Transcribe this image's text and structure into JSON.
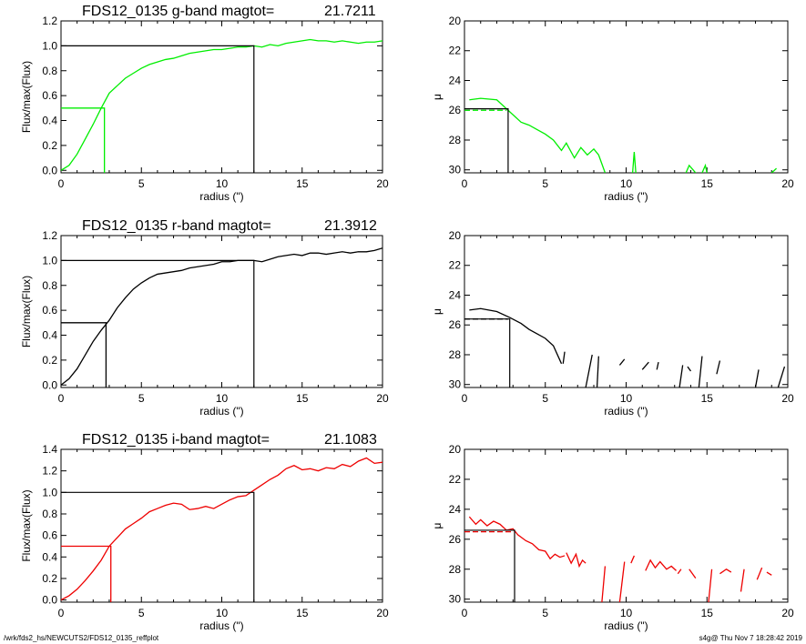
{
  "footer": {
    "left": "/wrk/fds2_hs/NEWCUTS2/FDS12_0135_reffplot",
    "right": "s4g@  Thu Nov  7 18:28:42 2019"
  },
  "chart_data": [
    {
      "type": "line",
      "panel": "g-band-growth-curve",
      "title_prefix": "FDS12_0135 g-band  magtot=",
      "title_value": "21.7211",
      "xlabel": "radius (\")",
      "ylabel": "Flux/max(Flux)",
      "xlim": [
        0,
        20
      ],
      "ylim": [
        -0.02,
        1.2
      ],
      "xticks": [
        "0",
        "5",
        "10",
        "15",
        "20"
      ],
      "yticks": [
        "0.0",
        "0.2",
        "0.4",
        "0.6",
        "0.8",
        "1.0",
        "1.2"
      ],
      "color": "#00ee00",
      "x": [
        0,
        0.5,
        1,
        1.5,
        2,
        2.5,
        3,
        3.5,
        4,
        4.5,
        5,
        5.5,
        6,
        6.5,
        7,
        7.5,
        8,
        8.5,
        9,
        9.5,
        10,
        10.5,
        11,
        11.5,
        12,
        12.5,
        13,
        13.5,
        14,
        14.5,
        15,
        15.5,
        16,
        16.5,
        17,
        17.5,
        18,
        18.5,
        19,
        19.5,
        20
      ],
      "y": [
        0.0,
        0.04,
        0.13,
        0.25,
        0.37,
        0.5,
        0.62,
        0.68,
        0.74,
        0.78,
        0.82,
        0.85,
        0.87,
        0.89,
        0.9,
        0.92,
        0.94,
        0.95,
        0.96,
        0.97,
        0.97,
        0.98,
        0.99,
        0.99,
        1.0,
        0.99,
        1.01,
        1.0,
        1.02,
        1.03,
        1.04,
        1.05,
        1.04,
        1.04,
        1.03,
        1.04,
        1.03,
        1.02,
        1.03,
        1.03,
        1.04
      ],
      "half_light": {
        "x": 2.7,
        "y": 0.5
      },
      "total": {
        "x": 12.0,
        "y": 1.0
      }
    },
    {
      "type": "line",
      "panel": "g-band-surface-brightness",
      "xlabel": "radius (\")",
      "ylabel": "μ",
      "xlim": [
        0,
        20
      ],
      "ylim": [
        30.2,
        20
      ],
      "xticks": [
        "0",
        "5",
        "10",
        "15",
        "20"
      ],
      "yticks": [
        "20",
        "22",
        "24",
        "26",
        "28",
        "30"
      ],
      "color": "#00ee00",
      "segments": [
        [
          [
            0.3,
            25.3
          ],
          [
            1,
            25.2
          ],
          [
            2,
            25.3
          ],
          [
            2.6,
            25.9
          ],
          [
            3.5,
            26.8
          ],
          [
            4,
            27.0
          ],
          [
            4.5,
            27.3
          ],
          [
            5,
            27.6
          ],
          [
            5.5,
            28.0
          ],
          [
            6,
            28.7
          ],
          [
            6.3,
            28.2
          ],
          [
            6.8,
            29.2
          ],
          [
            7.2,
            28.5
          ],
          [
            7.6,
            29.0
          ],
          [
            8,
            28.6
          ],
          [
            8.3,
            29.0
          ],
          [
            8.7,
            30.2
          ]
        ],
        [
          [
            10.4,
            30.2
          ],
          [
            10.5,
            28.8
          ],
          [
            10.6,
            30.2
          ]
        ],
        [
          [
            13.7,
            30.2
          ],
          [
            13.9,
            29.7
          ],
          [
            14.3,
            30.2
          ]
        ],
        [
          [
            14.7,
            30.2
          ],
          [
            14.9,
            29.7
          ],
          [
            15.0,
            30.2
          ]
        ],
        [
          [
            19.0,
            30.2
          ],
          [
            19.3,
            29.9
          ]
        ]
      ],
      "dashed": [
        [
          0,
          26.0
        ],
        [
          2.6,
          26.0
        ]
      ],
      "reff_marker": {
        "x": 2.7,
        "mu": 25.9
      }
    },
    {
      "type": "line",
      "panel": "r-band-growth-curve",
      "title_prefix": "FDS12_0135 r-band  magtot=",
      "title_value": "21.3912",
      "xlabel": "radius (\")",
      "ylabel": "Flux/max(Flux)",
      "xlim": [
        0,
        20
      ],
      "ylim": [
        -0.02,
        1.2
      ],
      "xticks": [
        "0",
        "5",
        "10",
        "15",
        "20"
      ],
      "yticks": [
        "0.0",
        "0.2",
        "0.4",
        "0.6",
        "0.8",
        "1.0",
        "1.2"
      ],
      "color": "#000000",
      "x": [
        0,
        0.5,
        1,
        1.5,
        2,
        2.5,
        3,
        3.5,
        4,
        4.5,
        5,
        5.5,
        6,
        6.5,
        7,
        7.5,
        8,
        8.5,
        9,
        9.5,
        10,
        10.5,
        11,
        11.5,
        12,
        12.5,
        13,
        13.5,
        14,
        14.5,
        15,
        15.5,
        16,
        16.5,
        17,
        17.5,
        18,
        18.5,
        19,
        19.5,
        20
      ],
      "y": [
        0.0,
        0.05,
        0.13,
        0.24,
        0.35,
        0.44,
        0.52,
        0.62,
        0.7,
        0.77,
        0.82,
        0.86,
        0.89,
        0.9,
        0.91,
        0.92,
        0.94,
        0.95,
        0.96,
        0.97,
        0.99,
        0.99,
        1.0,
        1.0,
        1.0,
        0.99,
        1.01,
        1.03,
        1.04,
        1.05,
        1.04,
        1.06,
        1.06,
        1.05,
        1.06,
        1.07,
        1.06,
        1.07,
        1.07,
        1.08,
        1.1
      ],
      "half_light": {
        "x": 2.8,
        "y": 0.5
      },
      "total": {
        "x": 12.0,
        "y": 1.0
      }
    },
    {
      "type": "line",
      "panel": "r-band-surface-brightness",
      "xlabel": "radius (\")",
      "ylabel": "μ",
      "xlim": [
        0,
        20
      ],
      "ylim": [
        30.2,
        20
      ],
      "xticks": [
        "0",
        "5",
        "10",
        "15",
        "20"
      ],
      "yticks": [
        "20",
        "22",
        "24",
        "26",
        "28",
        "30"
      ],
      "color": "#000000",
      "segments": [
        [
          [
            0.3,
            25.0
          ],
          [
            1,
            24.9
          ],
          [
            2,
            25.1
          ],
          [
            2.8,
            25.5
          ],
          [
            3.5,
            25.9
          ],
          [
            4,
            26.3
          ],
          [
            4.5,
            26.6
          ],
          [
            5,
            26.9
          ],
          [
            5.5,
            27.4
          ],
          [
            6,
            28.6
          ]
        ],
        [
          [
            6.1,
            28.6
          ],
          [
            6.2,
            27.8
          ]
        ],
        [
          [
            7.5,
            30.2
          ],
          [
            7.9,
            28.0
          ]
        ],
        [
          [
            8.2,
            30.2
          ],
          [
            8.3,
            28.1
          ]
        ],
        [
          [
            9.6,
            28.7
          ],
          [
            9.9,
            28.3
          ]
        ],
        [
          [
            11.0,
            29.0
          ],
          [
            11.4,
            28.5
          ]
        ],
        [
          [
            11.9,
            29.0
          ],
          [
            12.0,
            28.5
          ]
        ],
        [
          [
            13.3,
            30.2
          ],
          [
            13.5,
            28.7
          ]
        ],
        [
          [
            13.8,
            28.8
          ],
          [
            14.0,
            29.1
          ]
        ],
        [
          [
            14.5,
            30.2
          ],
          [
            14.7,
            28.1
          ]
        ],
        [
          [
            15.6,
            29.3
          ],
          [
            15.8,
            28.4
          ]
        ],
        [
          [
            18.0,
            30.2
          ],
          [
            18.2,
            29.0
          ]
        ],
        [
          [
            19.4,
            30.2
          ],
          [
            19.8,
            28.8
          ]
        ]
      ],
      "dashed": [
        [
          0,
          25.6
        ],
        [
          2.7,
          25.6
        ]
      ],
      "reff_marker": {
        "x": 2.8,
        "mu": 25.6
      }
    },
    {
      "type": "line",
      "panel": "i-band-growth-curve",
      "title_prefix": "FDS12_0135 i-band  magtot=",
      "title_value": "21.1083",
      "xlabel": "radius (\")",
      "ylabel": "Flux/max(Flux)",
      "xlim": [
        0,
        20
      ],
      "ylim": [
        -0.02,
        1.4
      ],
      "xticks": [
        "0",
        "5",
        "10",
        "15",
        "20"
      ],
      "yticks": [
        "0.0",
        "0.2",
        "0.4",
        "0.6",
        "0.8",
        "1.0",
        "1.2",
        "1.4"
      ],
      "color": "#ee0000",
      "x": [
        0,
        0.5,
        1,
        1.5,
        2,
        2.5,
        3,
        3.5,
        4,
        4.5,
        5,
        5.5,
        6,
        6.5,
        7,
        7.5,
        8,
        8.5,
        9,
        9.5,
        10,
        10.5,
        11,
        11.5,
        12,
        12.5,
        13,
        13.5,
        14,
        14.5,
        15,
        15.5,
        16,
        16.5,
        17,
        17.5,
        18,
        18.5,
        19,
        19.5,
        20
      ],
      "y": [
        0.0,
        0.04,
        0.1,
        0.18,
        0.27,
        0.37,
        0.5,
        0.58,
        0.66,
        0.71,
        0.76,
        0.82,
        0.85,
        0.88,
        0.9,
        0.89,
        0.84,
        0.85,
        0.87,
        0.85,
        0.89,
        0.93,
        0.96,
        0.97,
        1.02,
        1.07,
        1.12,
        1.16,
        1.22,
        1.25,
        1.21,
        1.22,
        1.2,
        1.23,
        1.22,
        1.26,
        1.24,
        1.29,
        1.32,
        1.27,
        1.28
      ],
      "half_light": {
        "x": 3.1,
        "y": 0.5
      },
      "total": {
        "x": 12.0,
        "y": 1.0
      }
    },
    {
      "type": "line",
      "panel": "i-band-surface-brightness",
      "xlabel": "radius (\")",
      "ylabel": "μ",
      "xlim": [
        0,
        20
      ],
      "ylim": [
        30.2,
        20
      ],
      "xticks": [
        "0",
        "5",
        "10",
        "15",
        "20"
      ],
      "yticks": [
        "20",
        "22",
        "24",
        "26",
        "28",
        "30"
      ],
      "color": "#ee0000",
      "segments": [
        [
          [
            0.3,
            24.5
          ],
          [
            0.7,
            25.0
          ],
          [
            1.0,
            24.7
          ],
          [
            1.4,
            25.1
          ],
          [
            1.8,
            24.8
          ],
          [
            2.2,
            25.0
          ],
          [
            2.6,
            25.4
          ],
          [
            3.0,
            25.3
          ],
          [
            3.3,
            25.7
          ],
          [
            3.8,
            26.1
          ],
          [
            4.2,
            26.3
          ],
          [
            4.6,
            26.7
          ],
          [
            5.0,
            26.8
          ],
          [
            5.3,
            27.3
          ],
          [
            5.6,
            27.0
          ],
          [
            5.9,
            27.2
          ],
          [
            6.2,
            27.1
          ]
        ],
        [
          [
            6.3,
            26.9
          ],
          [
            6.6,
            27.6
          ],
          [
            6.9,
            27.0
          ],
          [
            7.1,
            27.8
          ],
          [
            7.3,
            27.4
          ],
          [
            7.5,
            27.6
          ]
        ],
        [
          [
            8.5,
            30.2
          ],
          [
            8.7,
            27.8
          ]
        ],
        [
          [
            9.6,
            30.2
          ],
          [
            9.9,
            27.5
          ]
        ],
        [
          [
            10.3,
            27.6
          ],
          [
            10.5,
            27.1
          ]
        ],
        [
          [
            11.2,
            28.1
          ],
          [
            11.5,
            27.4
          ],
          [
            11.8,
            27.9
          ],
          [
            12.1,
            27.5
          ],
          [
            12.5,
            28.0
          ],
          [
            12.8,
            27.8
          ],
          [
            13.1,
            28.1
          ]
        ],
        [
          [
            13.2,
            28.3
          ],
          [
            13.4,
            28.0
          ]
        ],
        [
          [
            13.9,
            28.0
          ],
          [
            14.3,
            28.6
          ]
        ],
        [
          [
            15.1,
            30.2
          ],
          [
            15.3,
            28.0
          ]
        ],
        [
          [
            15.8,
            28.3
          ],
          [
            16.2,
            28.0
          ],
          [
            16.5,
            28.2
          ]
        ],
        [
          [
            17.1,
            29.5
          ],
          [
            17.3,
            28.0
          ]
        ],
        [
          [
            18.1,
            28.7
          ],
          [
            18.4,
            27.9
          ]
        ],
        [
          [
            18.7,
            28.2
          ],
          [
            19.0,
            28.4
          ]
        ]
      ],
      "dashed": [
        [
          0,
          25.5
        ],
        [
          3.0,
          25.5
        ]
      ],
      "reff_marker": {
        "x": 3.1,
        "mu": 25.4
      }
    }
  ]
}
